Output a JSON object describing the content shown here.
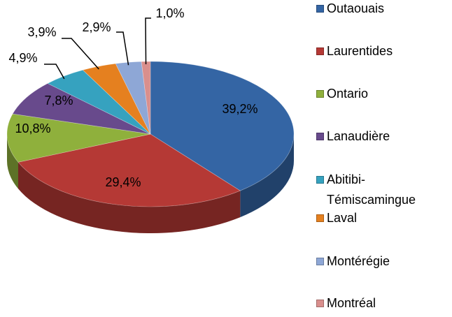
{
  "chart_data": {
    "type": "pie",
    "categories": [
      "Outaouais",
      "Laurentides",
      "Ontario",
      "Lanaudière",
      "Abitibi-Témiscamingue",
      "Laval",
      "Montérégie",
      "Montréal"
    ],
    "values": [
      39.2,
      29.4,
      10.8,
      7.8,
      4.9,
      3.9,
      2.9,
      1.0
    ],
    "value_labels": [
      "39,2%",
      "29,4%",
      "10,8%",
      "7,8%",
      "4,9%",
      "3,9%",
      "2,9%",
      "1,0%"
    ],
    "colors": [
      "#3465a4",
      "#b53935",
      "#8fb03c",
      "#684a8c",
      "#36a2bf",
      "#e5801f",
      "#8ea7d6",
      "#d98f8d"
    ],
    "legend": "right"
  }
}
